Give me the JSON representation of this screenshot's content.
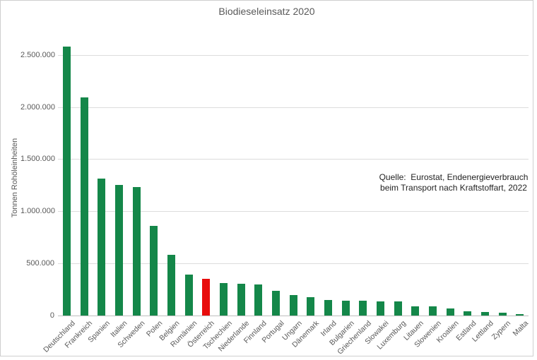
{
  "chart_data": {
    "type": "bar",
    "title": "Biodieseleinsatz 2020",
    "xlabel": "",
    "ylabel": "Tonnen Rohöleinheiten",
    "ylim": [
      0,
      2700000
    ],
    "ytick_interval": 500000,
    "yticks": [
      0,
      500000,
      1000000,
      1500000,
      2000000,
      2500000
    ],
    "ytick_labels": [
      "0",
      "500.000",
      "1.000.000",
      "1.500.000",
      "2.000.000",
      "2.500.000"
    ],
    "grid": true,
    "legend": "none",
    "bar_color": "#148749",
    "highlight_color": "#e80c0c",
    "highlight_category": "Österreich",
    "categories": [
      "Deutschland",
      "Frankreich",
      "Spanien",
      "Italien",
      "Schweden",
      "Polen",
      "Belgien",
      "Rumänien",
      "Österreich",
      "Tschechien",
      "Niederlande",
      "Finnland",
      "Portugal",
      "Ungarn",
      "Dänemark",
      "Irland",
      "Bulgarien",
      "Griechenland",
      "Slowakei",
      "Luxemburg",
      "Litauen",
      "Slowenien",
      "Kroatien",
      "Estland",
      "Lettland",
      "Zypern",
      "Malta"
    ],
    "values": [
      2580000,
      2090000,
      1310000,
      1250000,
      1230000,
      860000,
      580000,
      390000,
      355000,
      310000,
      305000,
      300000,
      240000,
      195000,
      175000,
      150000,
      145000,
      140000,
      137000,
      135000,
      90000,
      85000,
      65000,
      38000,
      36000,
      28000,
      14000
    ],
    "annotation": {
      "line1": "Quelle:  Eurostat, Endenergieverbrauch",
      "line2": "beim Transport nach Kraftstoffart, 2022"
    }
  }
}
